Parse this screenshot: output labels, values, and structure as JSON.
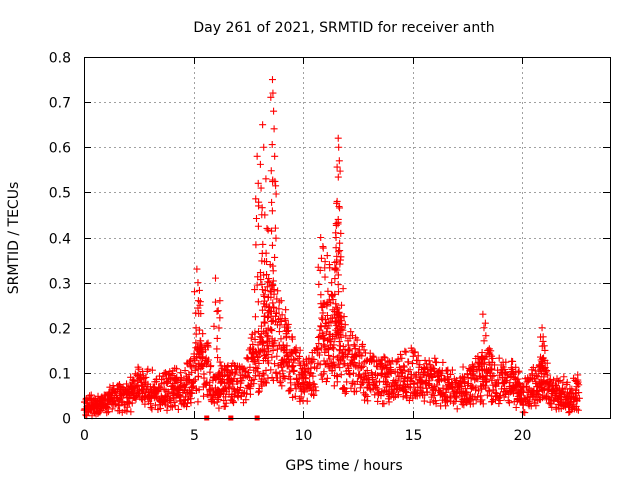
{
  "chart_data": {
    "type": "scatter",
    "title": "Day 261 of 2021, SRMTID for receiver anth",
    "xlabel": "GPS time / hours",
    "ylabel": "SRMTID / TECUs",
    "xlim": [
      0,
      24
    ],
    "ylim": [
      0,
      0.8
    ],
    "xticks": [
      0,
      5,
      10,
      15,
      20
    ],
    "xtick_labels": [
      "0",
      "5",
      "10",
      "15",
      "20"
    ],
    "yticks": [
      0,
      0.1,
      0.2,
      0.3,
      0.4,
      0.5,
      0.6,
      0.7,
      0.8
    ],
    "ytick_labels": [
      "0",
      "0.1",
      "0.2",
      "0.3",
      "0.4",
      "0.5",
      "0.6",
      "0.7",
      "0.8"
    ],
    "grid": true,
    "marker": "plus",
    "color": "#ff0000",
    "data_gap_markers_x": [
      5.6,
      6.7,
      7.9
    ],
    "series": [
      {
        "name": "SRMTID",
        "trend": [
          [
            0.0,
            0.03
          ],
          [
            0.5,
            0.025
          ],
          [
            1.0,
            0.03
          ],
          [
            1.5,
            0.05
          ],
          [
            2.0,
            0.05
          ],
          [
            2.5,
            0.07
          ],
          [
            3.0,
            0.06
          ],
          [
            3.5,
            0.06
          ],
          [
            4.0,
            0.07
          ],
          [
            4.5,
            0.06
          ],
          [
            5.0,
            0.1
          ],
          [
            5.5,
            0.12
          ],
          [
            6.0,
            0.06
          ],
          [
            6.5,
            0.08
          ],
          [
            7.0,
            0.08
          ],
          [
            7.5,
            0.1
          ],
          [
            8.0,
            0.13
          ],
          [
            8.5,
            0.18
          ],
          [
            9.0,
            0.17
          ],
          [
            9.5,
            0.12
          ],
          [
            10.0,
            0.08
          ],
          [
            10.5,
            0.1
          ],
          [
            11.0,
            0.18
          ],
          [
            11.5,
            0.17
          ],
          [
            12.0,
            0.12
          ],
          [
            12.5,
            0.11
          ],
          [
            13.0,
            0.1
          ],
          [
            13.5,
            0.09
          ],
          [
            14.0,
            0.08
          ],
          [
            14.5,
            0.09
          ],
          [
            15.0,
            0.1
          ],
          [
            15.5,
            0.08
          ],
          [
            16.0,
            0.08
          ],
          [
            16.5,
            0.07
          ],
          [
            17.0,
            0.06
          ],
          [
            17.5,
            0.07
          ],
          [
            18.0,
            0.09
          ],
          [
            18.5,
            0.1
          ],
          [
            19.0,
            0.08
          ],
          [
            19.5,
            0.08
          ],
          [
            20.0,
            0.05
          ],
          [
            20.5,
            0.07
          ],
          [
            21.0,
            0.08
          ],
          [
            21.5,
            0.05
          ],
          [
            22.0,
            0.05
          ],
          [
            22.5,
            0.06
          ]
        ],
        "peaks": [
          [
            5.15,
            0.33
          ],
          [
            5.2,
            0.3
          ],
          [
            5.22,
            0.26
          ],
          [
            6.0,
            0.31
          ],
          [
            6.2,
            0.26
          ],
          [
            7.9,
            0.58
          ],
          [
            7.95,
            0.52
          ],
          [
            8.15,
            0.65
          ],
          [
            8.2,
            0.6
          ],
          [
            8.25,
            0.45
          ],
          [
            8.3,
            0.53
          ],
          [
            8.35,
            0.42
          ],
          [
            8.6,
            0.75
          ],
          [
            8.62,
            0.72
          ],
          [
            8.65,
            0.68
          ],
          [
            8.7,
            0.58
          ],
          [
            8.5,
            0.34
          ],
          [
            8.45,
            0.3
          ],
          [
            9.0,
            0.26
          ],
          [
            9.2,
            0.24
          ],
          [
            10.8,
            0.4
          ],
          [
            10.9,
            0.38
          ],
          [
            11.1,
            0.36
          ],
          [
            11.2,
            0.34
          ],
          [
            11.3,
            0.3
          ],
          [
            11.6,
            0.62
          ],
          [
            11.62,
            0.6
          ],
          [
            11.65,
            0.57
          ],
          [
            11.55,
            0.48
          ],
          [
            11.6,
            0.44
          ],
          [
            11.7,
            0.35
          ],
          [
            11.75,
            0.25
          ],
          [
            11.5,
            0.4
          ],
          [
            11.45,
            0.33
          ],
          [
            18.2,
            0.23
          ],
          [
            18.25,
            0.2
          ],
          [
            20.9,
            0.2
          ],
          [
            20.95,
            0.18
          ],
          [
            21.0,
            0.16
          ]
        ]
      }
    ]
  }
}
